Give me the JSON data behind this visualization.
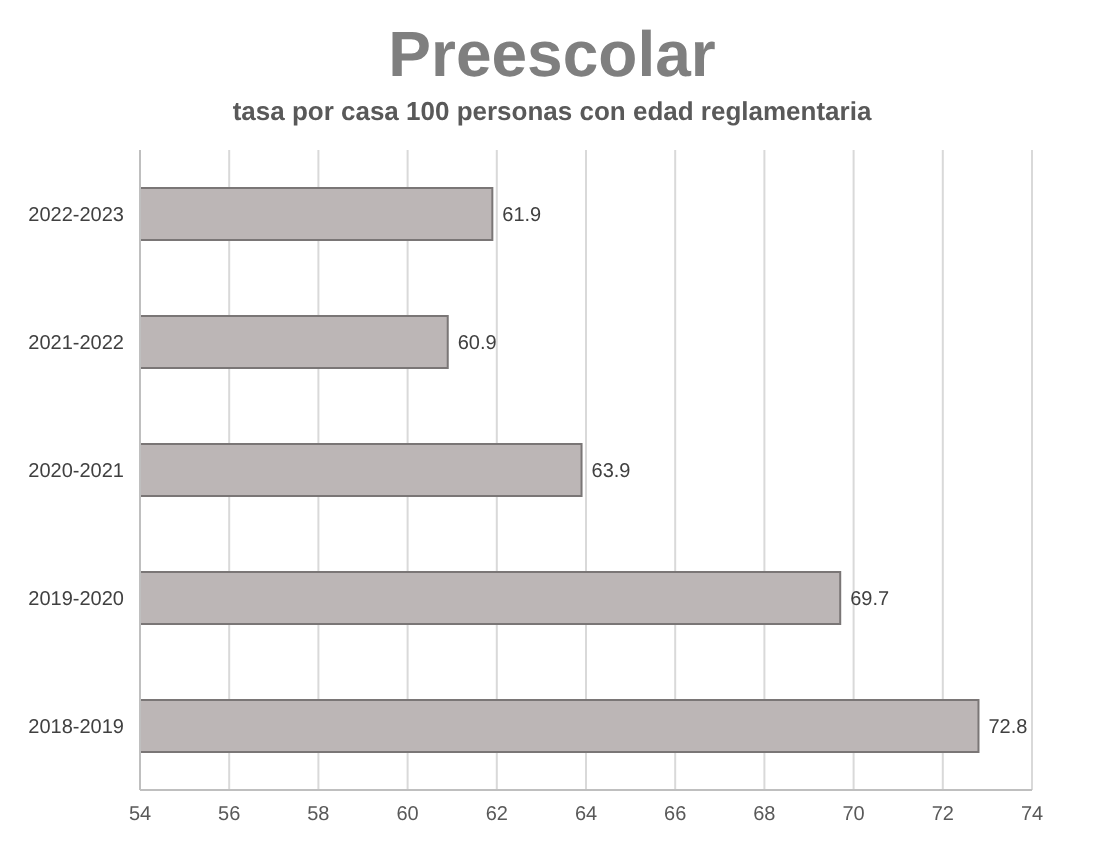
{
  "chart_data": {
    "type": "bar",
    "orientation": "horizontal",
    "title": "Preescolar",
    "subtitle": "tasa por casa 100 personas con edad reglamentaria",
    "categories": [
      "2022-2023",
      "2021-2022",
      "2020-2021",
      "2019-2020",
      "2018-2019"
    ],
    "values": [
      61.9,
      60.9,
      63.9,
      69.7,
      72.8
    ],
    "color": "#bcb6b6",
    "xlim": [
      54,
      74
    ],
    "xticks": [
      54,
      56,
      58,
      60,
      62,
      64,
      66,
      68,
      70,
      72,
      74
    ],
    "grid": "x",
    "data_labels": true
  }
}
